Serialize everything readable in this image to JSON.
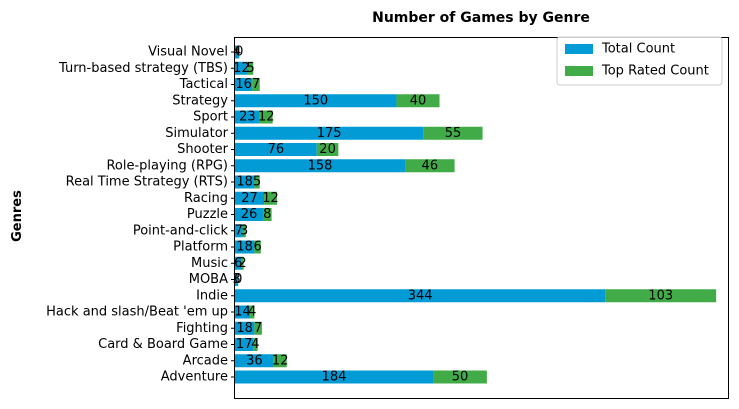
{
  "chart_data": {
    "type": "bar",
    "orientation": "horizontal",
    "stacked": true,
    "title": "Number of Games by Genre",
    "xlabel": "",
    "ylabel": "Genres",
    "xlim": [
      0,
      458
    ],
    "x_ticks_shown": false,
    "grid": false,
    "legend_position": "upper right",
    "categories": [
      "Adventure",
      "Arcade",
      "Card & Board Game",
      "Fighting",
      "Hack and slash/Beat 'em up",
      "Indie",
      "MOBA",
      "Music",
      "Platform",
      "Point-and-click",
      "Puzzle",
      "Racing",
      "Real Time Strategy (RTS)",
      "Role-playing (RPG)",
      "Shooter",
      "Simulator",
      "Sport",
      "Strategy",
      "Tactical",
      "Turn-based strategy (TBS)",
      "Visual Novel"
    ],
    "series": [
      {
        "name": "Total Count",
        "color": "#039bd6",
        "values": [
          184,
          36,
          17,
          18,
          14,
          344,
          3,
          6,
          18,
          7,
          26,
          27,
          18,
          158,
          76,
          175,
          23,
          150,
          16,
          12,
          4
        ]
      },
      {
        "name": "Top Rated Count",
        "color": "#41ac47",
        "values": [
          50,
          12,
          4,
          7,
          4,
          103,
          0,
          2,
          6,
          3,
          8,
          12,
          5,
          46,
          20,
          55,
          12,
          40,
          7,
          5,
          0
        ]
      }
    ]
  }
}
